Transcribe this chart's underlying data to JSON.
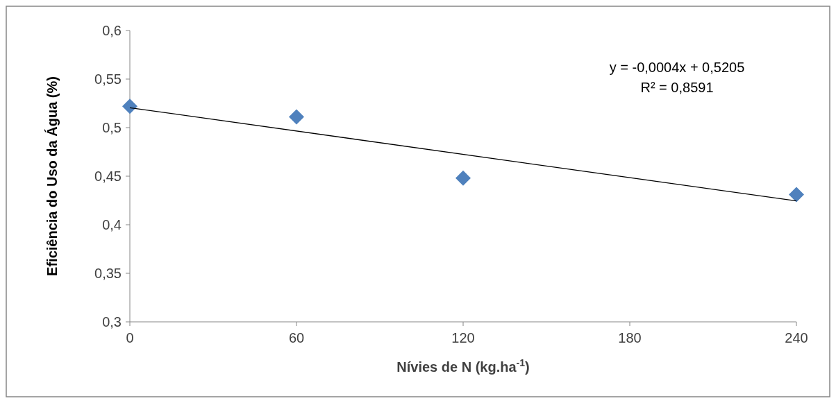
{
  "chart_data": {
    "type": "scatter",
    "xlabel": "Nívies de N (kg.ha$^{-1}$)",
    "ylabel": "Eficiência do Uso da Água (%)",
    "series": [
      {
        "color": "#4f81bd",
        "marker": "diamond",
        "x": [
          0,
          60,
          120,
          240
        ],
        "values": [
          0.522,
          0.511,
          0.448,
          0.431
        ]
      },
      {
        "type": "line",
        "color": "#000000",
        "line_style": "solid",
        "x": [
          0,
          240
        ],
        "values": [
          0.5205,
          0.4245
        ]
      }
    ],
    "xlim": [
      0,
      240
    ],
    "xticks": [
      {
        "value": 0,
        "label": "0"
      },
      {
        "value": 60,
        "label": "60"
      },
      {
        "value": 120,
        "label": "120"
      },
      {
        "value": 180,
        "label": "180"
      },
      {
        "value": 240,
        "label": "240"
      }
    ],
    "ylim": [
      0.3,
      0.6
    ],
    "yticks": [
      {
        "value": 0.3,
        "label": "0,3"
      },
      {
        "value": 0.35,
        "label": "0,35"
      },
      {
        "value": 0.4,
        "label": "0,4"
      },
      {
        "value": 0.45,
        "label": "0,45"
      },
      {
        "value": 0.5,
        "label": "0,5"
      },
      {
        "value": 0.55,
        "label": "0,55"
      },
      {
        "value": 0.6,
        "label": "0,6"
      }
    ],
    "annotations": [
      "y = -0,0004x + 0,5205",
      "R² = 0,8591"
    ],
    "grid": false
  }
}
